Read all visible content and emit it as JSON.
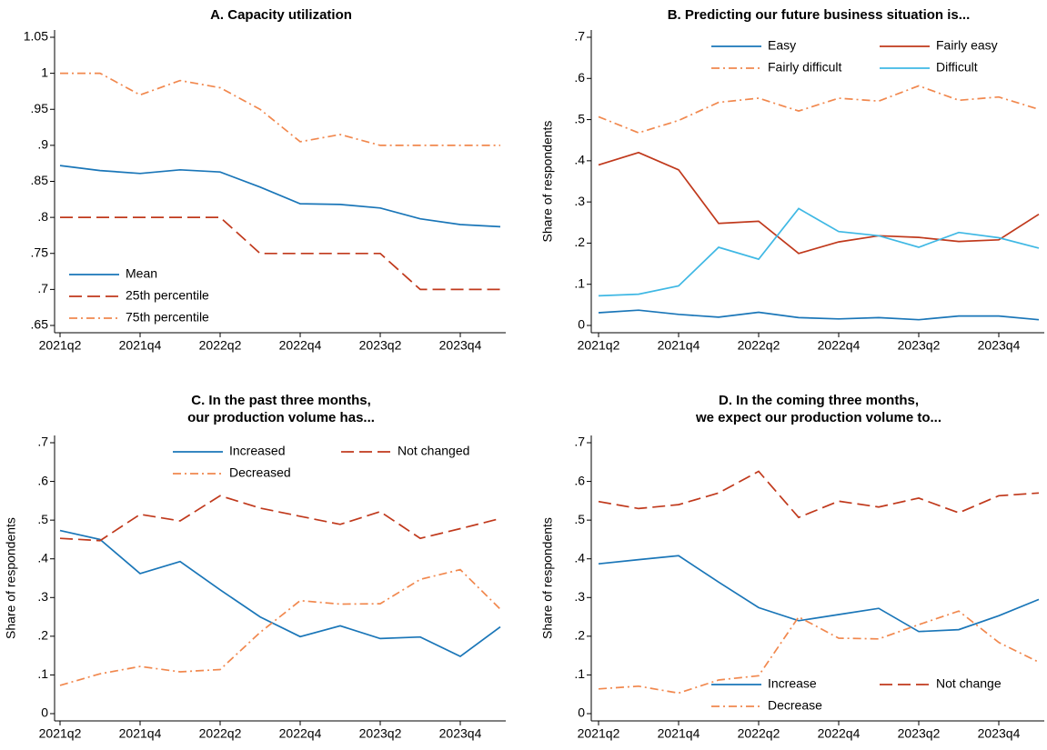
{
  "chart_data": [
    {
      "type": "line",
      "title": [
        "A. Capacity utilization"
      ],
      "categories": [
        "2021q2",
        null,
        "2021q4",
        null,
        "2022q2",
        null,
        "2022q4",
        null,
        "2023q2",
        null,
        "2023q4",
        null
      ],
      "ylim": [
        0.65,
        1.05
      ],
      "yticks": [
        {
          "value": 0.65,
          "label": ".65"
        },
        {
          "value": 0.7,
          "label": ".7"
        },
        {
          "value": 0.75,
          "label": ".75"
        },
        {
          "value": 0.8,
          "label": ".8"
        },
        {
          "value": 0.85,
          "label": ".85"
        },
        {
          "value": 0.9,
          "label": ".9"
        },
        {
          "value": 0.95,
          "label": ".95"
        },
        1,
        1.05
      ],
      "legend": "lower left",
      "legend_columns": 1,
      "series": [
        {
          "name": "Mean",
          "color": "#1a76b8",
          "dash": "solid",
          "values": [
            0.872,
            0.865,
            0.861,
            0.866,
            0.863,
            0.842,
            0.819,
            0.818,
            0.813,
            0.798,
            0.79,
            0.787
          ]
        },
        {
          "name": "25th percentile",
          "color": "#c0391c",
          "dash": "long",
          "values": [
            0.8,
            0.8,
            0.8,
            0.8,
            0.8,
            0.75,
            0.75,
            0.75,
            0.75,
            0.7,
            0.7,
            0.7
          ]
        },
        {
          "name": "75th percentile",
          "color": "#f1884e",
          "dash": "dashdot",
          "values": [
            1,
            1,
            0.97,
            0.99,
            0.98,
            0.95,
            0.905,
            0.915,
            0.9,
            0.9,
            0.9,
            0.9
          ]
        }
      ]
    },
    {
      "type": "line",
      "title": [
        "B. Predicting our future business situation is..."
      ],
      "ylabel": "Share of respondents",
      "categories": [
        "2021q2",
        null,
        "2021q4",
        null,
        "2022q2",
        null,
        "2022q4",
        null,
        "2023q2",
        null,
        "2023q4",
        null
      ],
      "ylim": [
        0,
        0.7
      ],
      "yticks": [
        0,
        {
          "value": 0.1,
          "label": ".1"
        },
        {
          "value": 0.2,
          "label": ".2"
        },
        {
          "value": 0.3,
          "label": ".3"
        },
        {
          "value": 0.4,
          "label": ".4"
        },
        {
          "value": 0.5,
          "label": ".5"
        },
        {
          "value": 0.6,
          "label": ".6"
        },
        {
          "value": 0.7,
          "label": ".7"
        }
      ],
      "legend": "upper right",
      "legend_columns": 2,
      "series": [
        {
          "name": "Easy",
          "color": "#1a76b8",
          "dash": "solid",
          "values": [
            0.031,
            0.037,
            0.027,
            0.02,
            0.032,
            0.019,
            0.016,
            0.019,
            0.014,
            0.023,
            0.023,
            0.014
          ]
        },
        {
          "name": "Fairly easy",
          "color": "#c0391c",
          "dash": "solid",
          "values": [
            0.39,
            0.42,
            0.378,
            0.248,
            0.253,
            0.175,
            0.203,
            0.218,
            0.214,
            0.204,
            0.208,
            0.27
          ]
        },
        {
          "name": "Fairly difficult",
          "color": "#f1884e",
          "dash": "dashdot",
          "values": [
            0.507,
            0.468,
            0.498,
            0.542,
            0.552,
            0.521,
            0.552,
            0.545,
            0.582,
            0.547,
            0.555,
            0.525
          ]
        },
        {
          "name": "Difficult",
          "color": "#3fb8e4",
          "dash": "solid",
          "values": [
            0.072,
            0.076,
            0.096,
            0.19,
            0.161,
            0.284,
            0.228,
            0.218,
            0.19,
            0.226,
            0.213,
            0.188
          ]
        }
      ]
    },
    {
      "type": "line",
      "title": [
        "C. In the past three months,",
        "our production volume has..."
      ],
      "ylabel": "Share of respondents",
      "categories": [
        "2021q2",
        null,
        "2021q4",
        null,
        "2022q2",
        null,
        "2022q4",
        null,
        "2023q2",
        null,
        "2023q4",
        null
      ],
      "ylim": [
        0,
        0.7
      ],
      "yticks": [
        0,
        {
          "value": 0.1,
          "label": ".1"
        },
        {
          "value": 0.2,
          "label": ".2"
        },
        {
          "value": 0.3,
          "label": ".3"
        },
        {
          "value": 0.4,
          "label": ".4"
        },
        {
          "value": 0.5,
          "label": ".5"
        },
        {
          "value": 0.6,
          "label": ".6"
        },
        {
          "value": 0.7,
          "label": ".7"
        }
      ],
      "legend": "upper right",
      "legend_columns": 2,
      "series": [
        {
          "name": "Increased",
          "color": "#1a76b8",
          "dash": "solid",
          "values": [
            0.473,
            0.45,
            0.362,
            0.393,
            0.32,
            0.25,
            0.199,
            0.227,
            0.194,
            0.198,
            0.148,
            0.224
          ]
        },
        {
          "name": "Not changed",
          "color": "#c0391c",
          "dash": "long",
          "values": [
            0.453,
            0.447,
            0.515,
            0.498,
            0.563,
            0.531,
            0.51,
            0.489,
            0.522,
            0.453,
            0.478,
            0.504
          ]
        },
        {
          "name": "Decreased",
          "color": "#f1884e",
          "dash": "dashdot",
          "values": [
            0.073,
            0.103,
            0.122,
            0.108,
            0.114,
            0.21,
            0.292,
            0.283,
            0.284,
            0.347,
            0.372,
            0.27
          ]
        }
      ]
    },
    {
      "type": "line",
      "title": [
        "D. In the coming three months,",
        "we expect our production volume to..."
      ],
      "ylabel": "Share of respondents",
      "categories": [
        "2021q2",
        null,
        "2021q4",
        null,
        "2022q2",
        null,
        "2022q4",
        null,
        "2023q2",
        null,
        "2023q4",
        null
      ],
      "ylim": [
        0,
        0.7
      ],
      "yticks": [
        0,
        {
          "value": 0.1,
          "label": ".1"
        },
        {
          "value": 0.2,
          "label": ".2"
        },
        {
          "value": 0.3,
          "label": ".3"
        },
        {
          "value": 0.4,
          "label": ".4"
        },
        {
          "value": 0.5,
          "label": ".5"
        },
        {
          "value": 0.6,
          "label": ".6"
        },
        {
          "value": 0.7,
          "label": ".7"
        }
      ],
      "legend": "lower right",
      "legend_columns": 2,
      "series": [
        {
          "name": "Increase",
          "color": "#1a76b8",
          "dash": "solid",
          "values": [
            0.387,
            0.398,
            0.408,
            0.34,
            0.274,
            0.24,
            0.256,
            0.272,
            0.212,
            0.217,
            0.253,
            0.295
          ]
        },
        {
          "name": "Not change",
          "color": "#c0391c",
          "dash": "long",
          "values": [
            0.548,
            0.53,
            0.54,
            0.57,
            0.626,
            0.507,
            0.549,
            0.534,
            0.557,
            0.519,
            0.563,
            0.57
          ]
        },
        {
          "name": "Decrease",
          "color": "#f1884e",
          "dash": "dashdot",
          "values": [
            0.064,
            0.071,
            0.053,
            0.087,
            0.098,
            0.25,
            0.195,
            0.193,
            0.23,
            0.265,
            0.184,
            0.133
          ]
        }
      ]
    }
  ]
}
